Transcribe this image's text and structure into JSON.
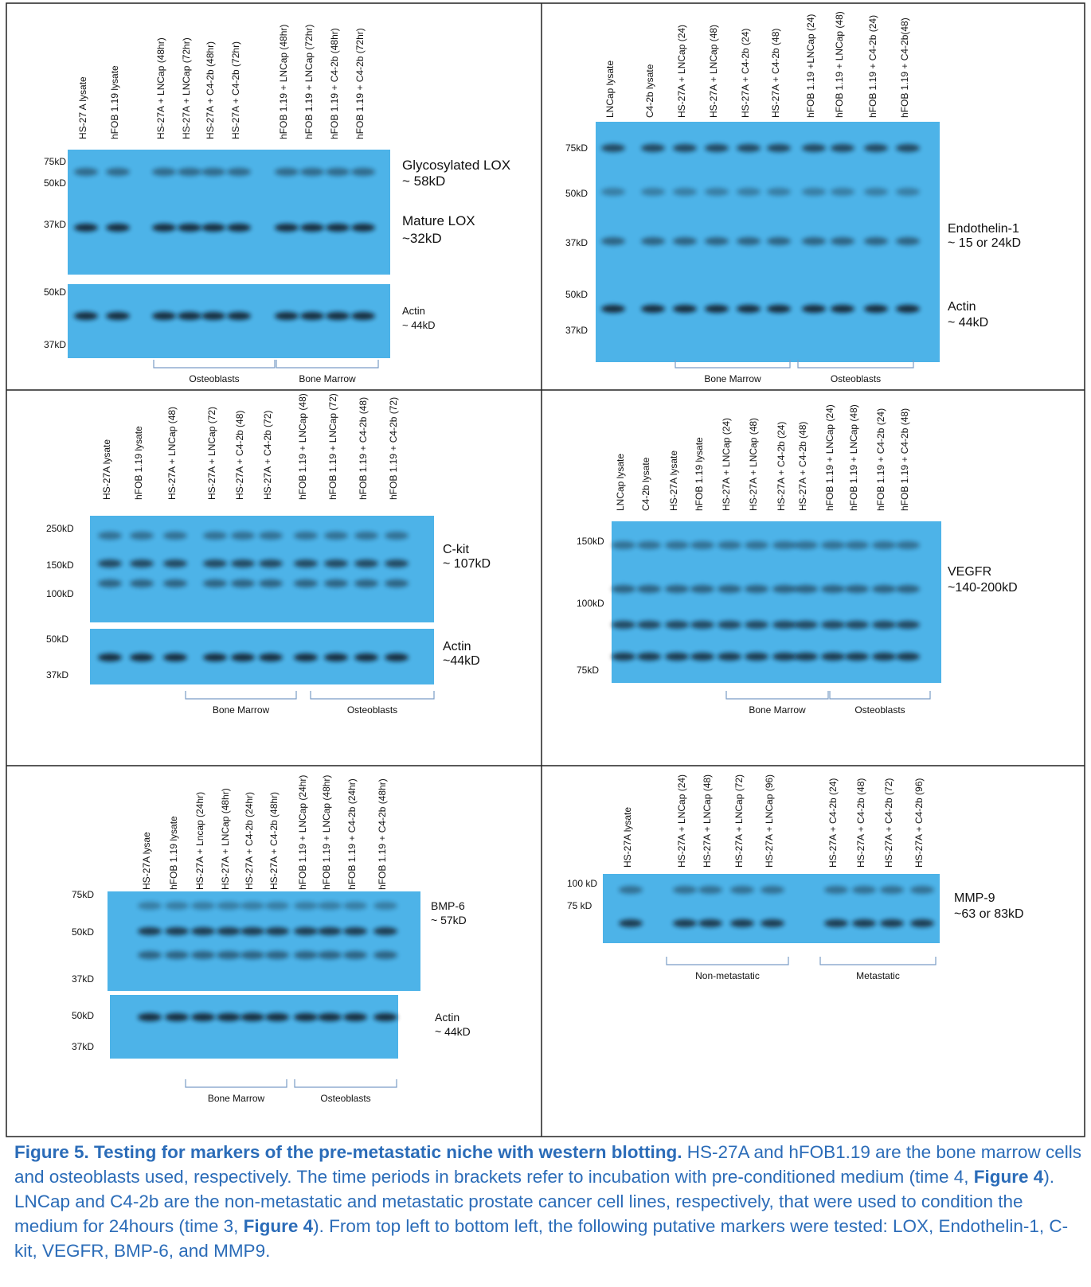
{
  "panels": [
    {
      "lanes": [
        "HS-27 A lysate",
        "hFOB 1.19 lysate",
        "HS-27A + LNCap (48hr)",
        "HS-27A + LNCap (72hr)",
        "HS-27A + C4-2b (48hr)",
        "HS-27A + C4-2b (72hr)",
        "hFOB 1.19 + LNCap (48hr)",
        "hFOB 1.19 + LNCap (72hr)",
        "hFOB 1.19 + C4-2b (48hr)",
        "hFOB 1.19 + C4-2b (72hr)"
      ],
      "markers": [
        "75kD",
        "50kD",
        "37kD",
        "50kD",
        "37kD"
      ],
      "annotations": [
        "Glycosylated LOX",
        "~ 58kD",
        "Mature LOX",
        "~32kD",
        "Actin",
        "~ 44kD"
      ],
      "groups": [
        "Osteoblasts",
        "Bone Marrow"
      ]
    },
    {
      "lanes": [
        "LNCap lysate",
        "C4-2b lysate",
        "HS-27A + LNCap (24)",
        "HS-27A + LNCap (48)",
        "HS-27A + C4-2b (24)",
        "HS-27A + C4-2b (48)",
        "hFOB 1.19 +LNCap (24)",
        "hFOB 1.19 + LNCap (48)",
        "hFOB 1.19 + C4-2b (24)",
        "hFOB 1.19 + C4-2b(48)"
      ],
      "markers": [
        "75kD",
        "50kD",
        "37kD",
        "50kD",
        "37kD"
      ],
      "annotations": [
        "Endothelin-1",
        "~ 15 or 24kD",
        "Actin",
        "~ 44kD"
      ],
      "groups": [
        "Bone Marrow",
        "Osteoblasts"
      ]
    },
    {
      "lanes": [
        "HS-27A lysate",
        "hFOB 1.19 lysate",
        "HS-27A + LNCap (48)",
        "HS-27A + LNCap (72)",
        "HS-27A + C4-2b (48)",
        "HS-27A + C4-2b (72)",
        "hFOB 1.19 + LNCap (48)",
        "hFOB 1.19 + LNCap (72)",
        "hFOB 1.19 + C4-2b (48)",
        "hFOB 1.19 + C4-2b (72)"
      ],
      "markers": [
        "250kD",
        "150kD",
        "100kD",
        "50kD",
        "37kD"
      ],
      "annotations": [
        "C-kit",
        "~ 107kD",
        "Actin",
        "~44kD"
      ],
      "groups": [
        "Bone Marrow",
        "Osteoblasts"
      ]
    },
    {
      "lanes": [
        "LNCap lysate",
        "C4-2b lysate",
        "HS-27A lysate",
        "hFOB 1.19 lysate",
        "HS-27A + LNCap (24)",
        "HS-27A + LNCap (48)",
        "HS-27A + C4-2b (24)",
        "HS-27A + C4-2b (48)",
        "hFOB 1.19 + LNCap (24)",
        "hFOB 1.19 + LNCap (48)",
        "hFOB 1.19 + C4-2b (24)",
        "hFOB 1.19 + C4-2b (48)"
      ],
      "markers": [
        "150kD",
        "100kD",
        "75kD"
      ],
      "annotations": [
        "VEGFR",
        "~140-200kD"
      ],
      "groups": [
        "Bone Marrow",
        "Osteoblasts"
      ]
    },
    {
      "lanes": [
        "HS-27A lysae",
        "hFOB 1.19 lysate",
        "HS-27A + Lncap (24hr)",
        "HS-27A + LNCap (48hr)",
        "HS-27A + C4-2b (24hr)",
        "HS-27A + C4-2b (48hr)",
        "hFOB 1.19 + LNCap (24hr)",
        "hFOB 1.19 + LNCap (48hr)",
        "hFOB 1.19 + C4-2b (24hr)",
        "hFOB 1.19 + C4-2b (48hr)"
      ],
      "markers": [
        "75kD",
        "50kD",
        "37kD",
        "50kD",
        "37kD"
      ],
      "annotations": [
        "BMP-6",
        "~ 57kD",
        "Actin",
        "~ 44kD"
      ],
      "groups": [
        "Bone Marrow",
        "Osteoblasts"
      ]
    },
    {
      "lanes": [
        "HS-27A lysate",
        "HS-27A + LNCap (24)",
        "HS-27A + LNCap (48)",
        "HS-27A + LNCap (72)",
        "HS-27A + LNCap (96)",
        "HS-27A + C4-2b (24)",
        "HS-27A + C4-2b (48)",
        "HS-27A + C4-2b (72)",
        "HS-27A + C4-2b (96)"
      ],
      "markers": [
        "100 kD",
        "75 kD"
      ],
      "annotations": [
        "MMP-9",
        "~63 or 83kD"
      ],
      "groups": [
        "Non-metastatic",
        "Metastatic"
      ]
    }
  ],
  "caption": {
    "title": "Figure 5. Testing for markers of the pre-metastatic niche with western blotting.",
    "parts": [
      {
        "text": " HS-27A and hFOB1.19 are the bone marrow cells and osteoblasts used, respectively. The time periods in brackets refer to incubation with pre-conditioned medium (time 4, ",
        "bold": false
      },
      {
        "text": "Figure 4",
        "bold": true
      },
      {
        "text": ").  LNCap and C4-2b are the non-metastatic and metastatic prostate cancer cell lines, respectively, that were used to condition the medium for 24hours (time 3, ",
        "bold": false
      },
      {
        "text": "Figure 4",
        "bold": true
      },
      {
        "text": "). From top left to bottom left, the following putative markers were tested: LOX, Endothelin-1, C-kit, VEGFR, BMP-6, and MMP9.",
        "bold": false
      }
    ]
  }
}
